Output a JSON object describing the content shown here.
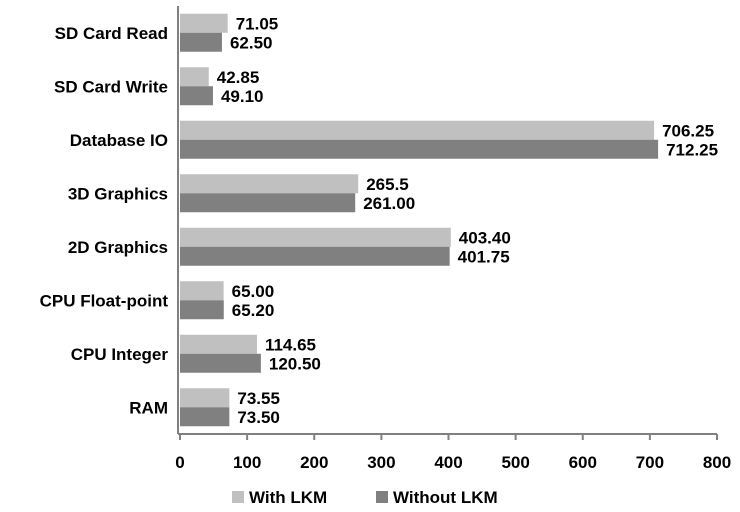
{
  "chart_data": {
    "type": "bar",
    "orientation": "horizontal",
    "categories": [
      "SD Card Read",
      "SD Card Write",
      "Database IO",
      "3D Graphics",
      "2D Graphics",
      "CPU Float-point",
      "CPU Integer",
      "RAM"
    ],
    "series": [
      {
        "name": "With LKM",
        "color": "#c0c0c0",
        "values": [
          71.05,
          42.85,
          706.25,
          265.5,
          403.4,
          65.0,
          114.65,
          73.55
        ],
        "labels": [
          "71.05",
          "42.85",
          "706.25",
          "265.5",
          "403.40",
          "65.00",
          "114.65",
          "73.55"
        ]
      },
      {
        "name": "Without LKM",
        "color": "#808080",
        "values": [
          62.5,
          49.1,
          712.25,
          261.0,
          401.75,
          65.2,
          120.5,
          73.5
        ],
        "labels": [
          "62.50",
          "49.10",
          "712.25",
          "261.00",
          "401.75",
          "65.20",
          "120.50",
          "73.50"
        ]
      }
    ],
    "xlim": [
      0,
      800
    ],
    "xticks": [
      "0",
      "100",
      "200",
      "300",
      "400",
      "500",
      "600",
      "700",
      "800"
    ],
    "title": "",
    "xlabel": "",
    "ylabel": "",
    "grid": false,
    "legend_position": "bottom"
  }
}
